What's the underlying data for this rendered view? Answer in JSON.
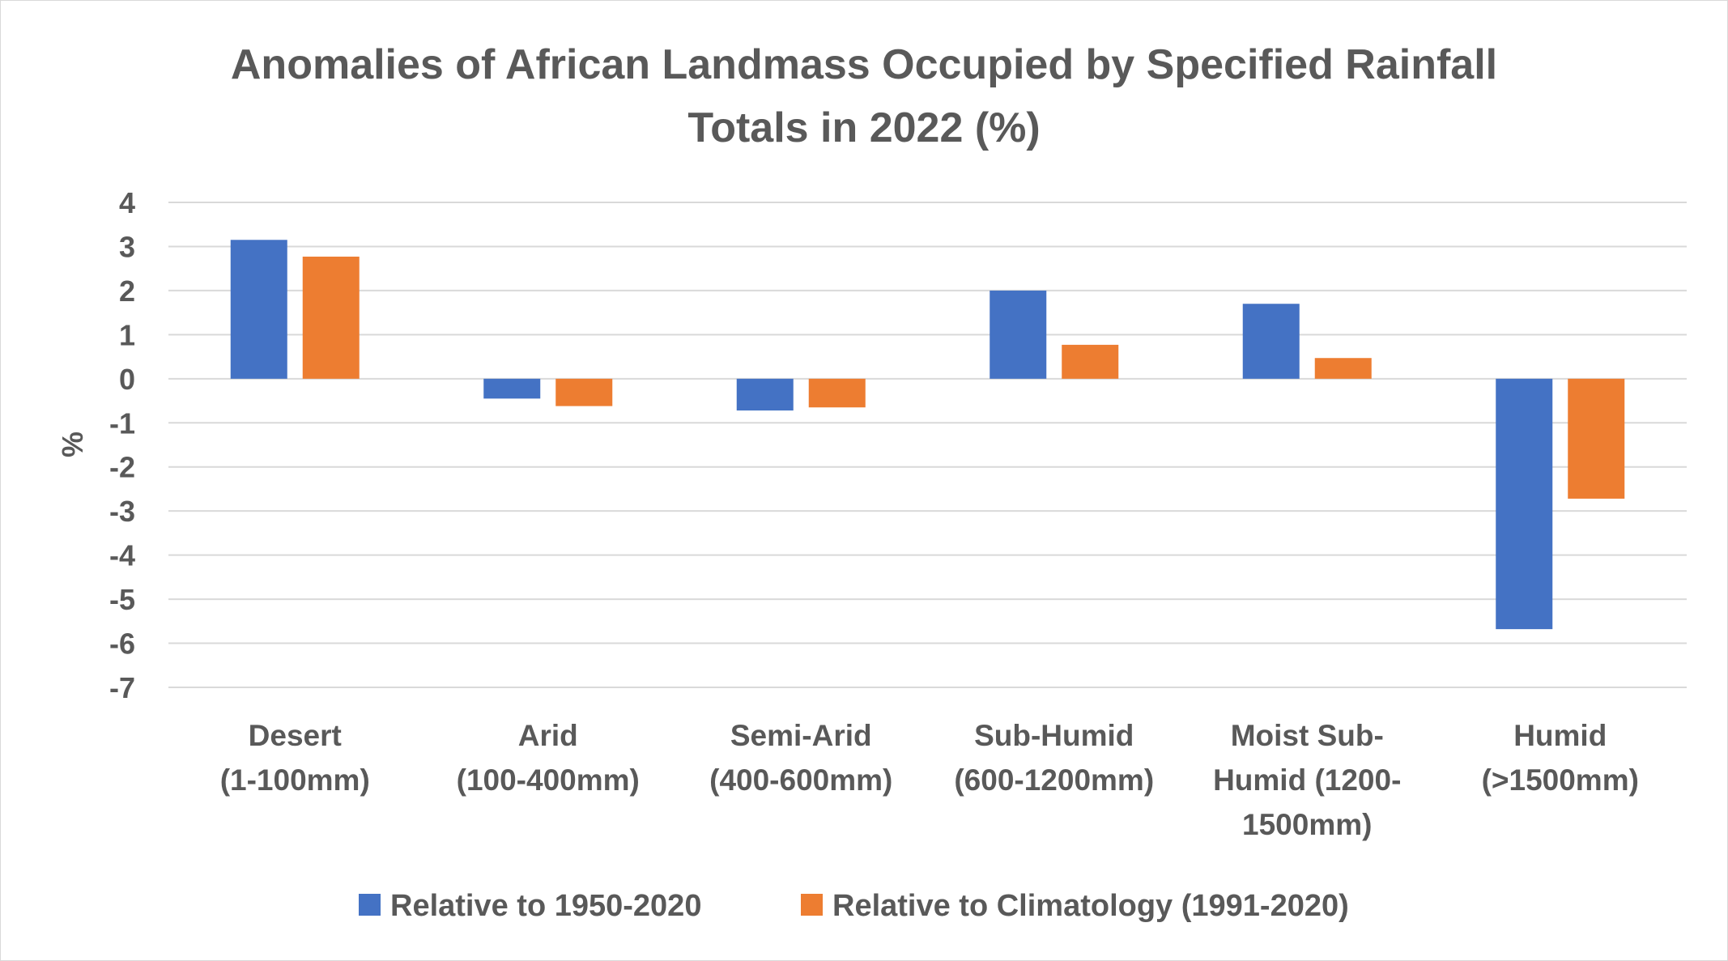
{
  "chart_data": {
    "type": "bar",
    "title": "Anomalies of African Landmass Occupied by Specified Rainfall Totals in 2022 (%)",
    "title_lines": [
      "Anomalies of African Landmass Occupied by Specified Rainfall",
      "Totals in 2022 (%)"
    ],
    "xlabel": "",
    "ylabel": "%",
    "ylim": [
      -7,
      4
    ],
    "yticks": [
      4,
      3,
      2,
      1,
      0,
      -1,
      -2,
      -3,
      -4,
      -5,
      -6,
      -7
    ],
    "grid": true,
    "legend_position": "bottom",
    "categories": [
      "Desert (1-100mm)",
      "Arid (100-400mm)",
      "Semi-Arid (400-600mm)",
      "Sub-Humid (600-1200mm)",
      "Moist Sub-Humid (1200-1500mm)",
      "Humid (>1500mm)"
    ],
    "category_lines": [
      [
        "Desert",
        "(1-100mm)"
      ],
      [
        "Arid",
        "(100-400mm)"
      ],
      [
        "Semi-Arid",
        "(400-600mm)"
      ],
      [
        "Sub-Humid",
        "(600-1200mm)"
      ],
      [
        "Moist Sub-",
        "Humid (1200-",
        "1500mm)"
      ],
      [
        "Humid",
        "(>1500mm)"
      ]
    ],
    "series": [
      {
        "name": "Relative to 1950-2020",
        "color": "#4472C4",
        "values": [
          3.15,
          -0.45,
          -0.72,
          2.0,
          1.7,
          -5.68
        ]
      },
      {
        "name": "Relative to Climatology (1991-2020)",
        "color": "#ED7D31",
        "values": [
          2.77,
          -0.62,
          -0.65,
          0.77,
          0.47,
          -2.72
        ]
      }
    ]
  },
  "colors": {
    "text": "#595959",
    "gridline": "#d9d9d9",
    "border": "#d9d9d9"
  }
}
